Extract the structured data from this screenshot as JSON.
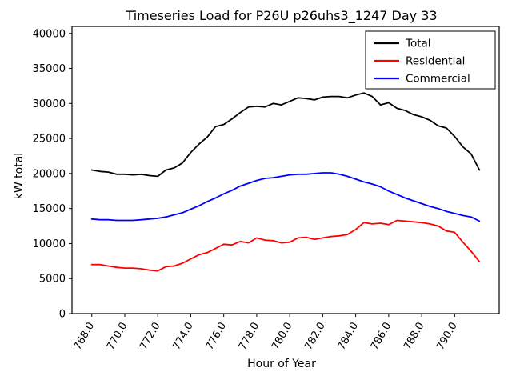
{
  "chart_data": {
    "type": "line",
    "title": "Timeseries Load for P26U p26uhs3_1247  Day 33",
    "xlabel": "Hour of Year",
    "ylabel": "kW total",
    "xlim": [
      766.8,
      792.7
    ],
    "ylim": [
      0,
      41000
    ],
    "grid": false,
    "legend_position": "upper right",
    "xticks": [
      768,
      770,
      772,
      774,
      776,
      778,
      780,
      782,
      784,
      786,
      788,
      790
    ],
    "xtick_labels": [
      "768.0",
      "770.0",
      "772.0",
      "774.0",
      "776.0",
      "778.0",
      "780.0",
      "782.0",
      "784.0",
      "786.0",
      "788.0",
      "790.0"
    ],
    "yticks": [
      0,
      5000,
      10000,
      15000,
      20000,
      25000,
      30000,
      35000,
      40000
    ],
    "ytick_labels": [
      "0",
      "5000",
      "10000",
      "15000",
      "20000",
      "25000",
      "30000",
      "35000",
      "40000"
    ],
    "x": [
      768.0,
      768.5,
      769.0,
      769.5,
      770.0,
      770.5,
      771.0,
      771.5,
      772.0,
      772.5,
      773.0,
      773.5,
      774.0,
      774.5,
      775.0,
      775.5,
      776.0,
      776.5,
      777.0,
      777.5,
      778.0,
      778.5,
      779.0,
      779.5,
      780.0,
      780.5,
      781.0,
      781.5,
      782.0,
      782.5,
      783.0,
      783.5,
      784.0,
      784.5,
      785.0,
      785.5,
      786.0,
      786.5,
      787.0,
      787.5,
      788.0,
      788.5,
      789.0,
      789.5,
      790.0,
      790.5,
      791.0,
      791.5
    ],
    "series": [
      {
        "name": "Total",
        "color": "#000000",
        "values": [
          20500,
          20300,
          20200,
          19900,
          19900,
          19800,
          19900,
          19700,
          19600,
          20500,
          20800,
          21500,
          23000,
          24200,
          25200,
          26700,
          27000,
          27800,
          28700,
          29500,
          29600,
          29500,
          30000,
          29800,
          30300,
          30800,
          30700,
          30500,
          30900,
          31000,
          31000,
          30800,
          31200,
          31500,
          31000,
          29800,
          30100,
          29300,
          29000,
          28400,
          28100,
          27600,
          26800,
          26500,
          25300,
          23800,
          22800,
          20500
        ]
      },
      {
        "name": "Residential",
        "color": "#ff0000",
        "values": [
          7000,
          7000,
          6800,
          6600,
          6500,
          6500,
          6400,
          6200,
          6100,
          6700,
          6800,
          7200,
          7800,
          8400,
          8700,
          9300,
          9900,
          9800,
          10300,
          10100,
          10800,
          10500,
          10400,
          10100,
          10200,
          10800,
          10900,
          10600,
          10800,
          11000,
          11100,
          11300,
          12000,
          13000,
          12800,
          12900,
          12700,
          13300,
          13200,
          13100,
          13000,
          12800,
          12500,
          11800,
          11600,
          10200,
          8900,
          7400
        ]
      },
      {
        "name": "Commercial",
        "color": "#0000ff",
        "values": [
          13500,
          13400,
          13400,
          13300,
          13300,
          13300,
          13400,
          13500,
          13600,
          13800,
          14100,
          14400,
          14900,
          15400,
          16000,
          16500,
          17100,
          17600,
          18200,
          18600,
          19000,
          19300,
          19400,
          19600,
          19800,
          19900,
          19900,
          20000,
          20100,
          20100,
          19900,
          19600,
          19200,
          18800,
          18500,
          18100,
          17500,
          17000,
          16500,
          16100,
          15700,
          15300,
          15000,
          14600,
          14300,
          14000,
          13800,
          13200
        ]
      }
    ]
  }
}
